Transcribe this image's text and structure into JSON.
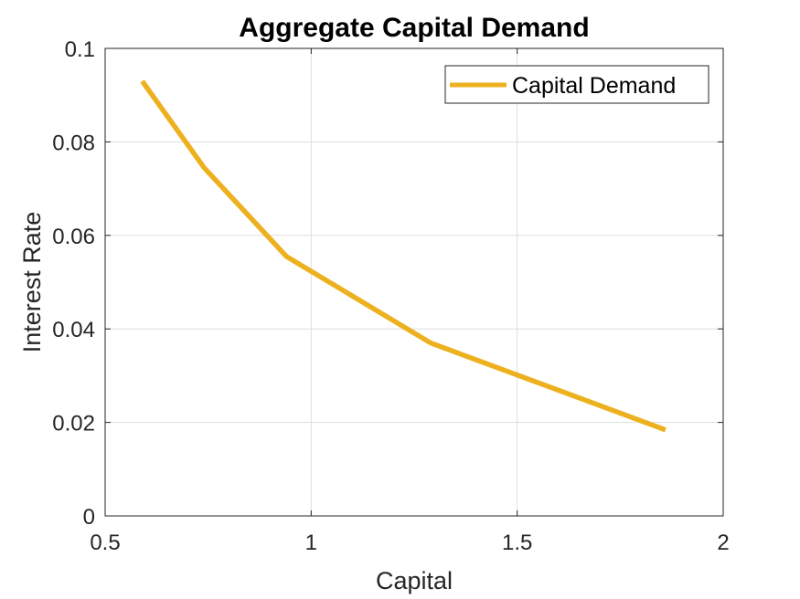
{
  "chart_data": {
    "type": "line",
    "title": "Aggregate Capital Demand",
    "xlabel": "Capital",
    "ylabel": "Interest Rate",
    "xlim": [
      0.5,
      2
    ],
    "ylim": [
      0,
      0.1
    ],
    "xticks": [
      0.5,
      1,
      1.5,
      2
    ],
    "xtick_labels": [
      "0.5",
      "1",
      "1.5",
      "2"
    ],
    "yticks": [
      0,
      0.02,
      0.04,
      0.06,
      0.08,
      0.1
    ],
    "ytick_labels": [
      "0",
      "0.02",
      "0.04",
      "0.06",
      "0.08",
      "0.1"
    ],
    "grid": true,
    "legend_position": "top-right",
    "series": [
      {
        "name": "Capital Demand",
        "color": "#EDB120",
        "x": [
          0.59,
          0.74,
          0.94,
          1.29,
          1.86
        ],
        "y": [
          0.093,
          0.0745,
          0.0555,
          0.037,
          0.0184
        ]
      }
    ]
  }
}
